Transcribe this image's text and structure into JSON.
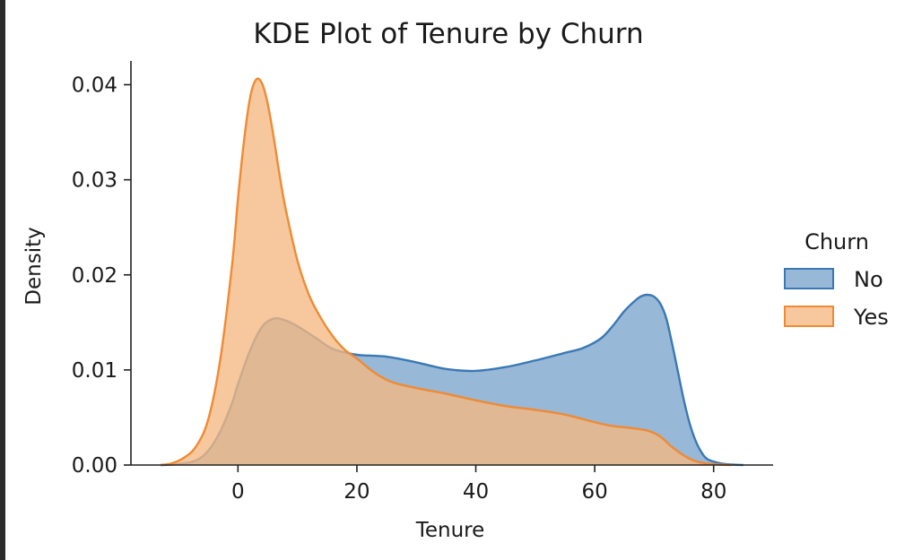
{
  "chart_data": {
    "type": "area",
    "title": "KDE Plot of Tenure by Churn",
    "xlabel": "Tenure",
    "ylabel": "Density",
    "xlim": [
      -18,
      90
    ],
    "ylim": [
      0,
      0.0425
    ],
    "xticks": [
      0,
      20,
      40,
      60,
      80
    ],
    "yticks": [
      0.0,
      0.01,
      0.02,
      0.03,
      0.04
    ],
    "ytick_labels": [
      "0.00",
      "0.01",
      "0.02",
      "0.03",
      "0.04"
    ],
    "grid": false,
    "legend": {
      "title": "Churn",
      "placement": "right"
    },
    "series": [
      {
        "name": "No",
        "color": "#3a78b5",
        "fill": "#7ba4cc",
        "x": [
          -13,
          -10,
          -7,
          -5,
          -3,
          -1,
          0,
          2,
          4,
          6,
          8,
          10,
          13,
          16,
          20,
          25,
          30,
          35,
          40,
          45,
          50,
          55,
          58,
          61,
          63,
          65,
          67,
          68,
          69,
          70,
          71,
          72,
          73,
          74,
          75,
          76,
          77,
          78,
          79,
          81,
          83,
          85
        ],
        "y": [
          0,
          0.0001,
          0.0005,
          0.0015,
          0.0035,
          0.0065,
          0.0085,
          0.012,
          0.0145,
          0.0154,
          0.0152,
          0.0146,
          0.0134,
          0.0122,
          0.0116,
          0.0114,
          0.0108,
          0.0101,
          0.0099,
          0.0103,
          0.011,
          0.0118,
          0.0123,
          0.0133,
          0.0146,
          0.0162,
          0.0174,
          0.0178,
          0.0179,
          0.0177,
          0.017,
          0.0155,
          0.0128,
          0.0098,
          0.0068,
          0.0043,
          0.0025,
          0.0013,
          0.0006,
          0.0002,
          5e-05,
          0
        ]
      },
      {
        "name": "Yes",
        "color": "#f08a32",
        "fill": "#f5b882",
        "x": [
          -13,
          -11,
          -9,
          -7,
          -5,
          -3,
          -1,
          0,
          1,
          2,
          3,
          4,
          5,
          6,
          7,
          8,
          10,
          12,
          14,
          16,
          18,
          20,
          23,
          26,
          30,
          35,
          40,
          45,
          50,
          55,
          60,
          63,
          66,
          69,
          71,
          73,
          75,
          77,
          79,
          81,
          83
        ],
        "y": [
          0,
          0.0002,
          0.0008,
          0.002,
          0.0048,
          0.011,
          0.021,
          0.028,
          0.034,
          0.0385,
          0.0405,
          0.0402,
          0.038,
          0.0345,
          0.0305,
          0.027,
          0.0215,
          0.0178,
          0.0154,
          0.0135,
          0.0121,
          0.0112,
          0.0097,
          0.0087,
          0.0081,
          0.0075,
          0.0068,
          0.0062,
          0.0058,
          0.0053,
          0.0045,
          0.0041,
          0.0039,
          0.0036,
          0.003,
          0.0019,
          0.001,
          0.0004,
          0.00015,
          5e-05,
          0
        ]
      }
    ]
  }
}
